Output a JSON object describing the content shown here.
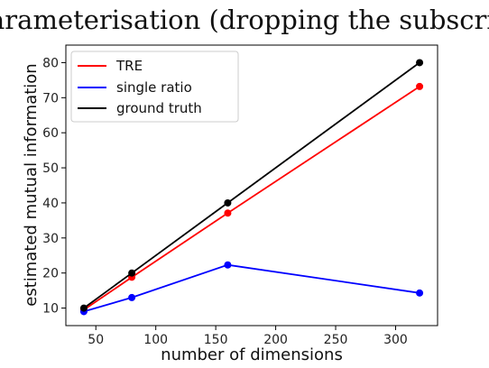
{
  "caption": "arameterisation (dropping the subscript k).",
  "chart_data": {
    "type": "line",
    "title": "",
    "xlabel": "number of dimensions",
    "ylabel": "estimated mutual information",
    "x": [
      40,
      80,
      160,
      320
    ],
    "xlim": [
      25,
      335
    ],
    "ylim": [
      5,
      85
    ],
    "xticks": [
      50,
      100,
      150,
      200,
      250,
      300
    ],
    "yticks": [
      10,
      20,
      30,
      40,
      50,
      60,
      70,
      80
    ],
    "grid": false,
    "legend_position": "top-left",
    "series": [
      {
        "name": "TRE",
        "color": "#ff0000",
        "values": [
          9.5,
          18.8,
          37.1,
          73.2
        ]
      },
      {
        "name": "single ratio",
        "color": "#0000ff",
        "values": [
          9.0,
          13.0,
          22.3,
          14.3
        ]
      },
      {
        "name": "ground truth",
        "color": "#000000",
        "values": [
          10,
          20,
          40,
          80
        ]
      }
    ]
  }
}
